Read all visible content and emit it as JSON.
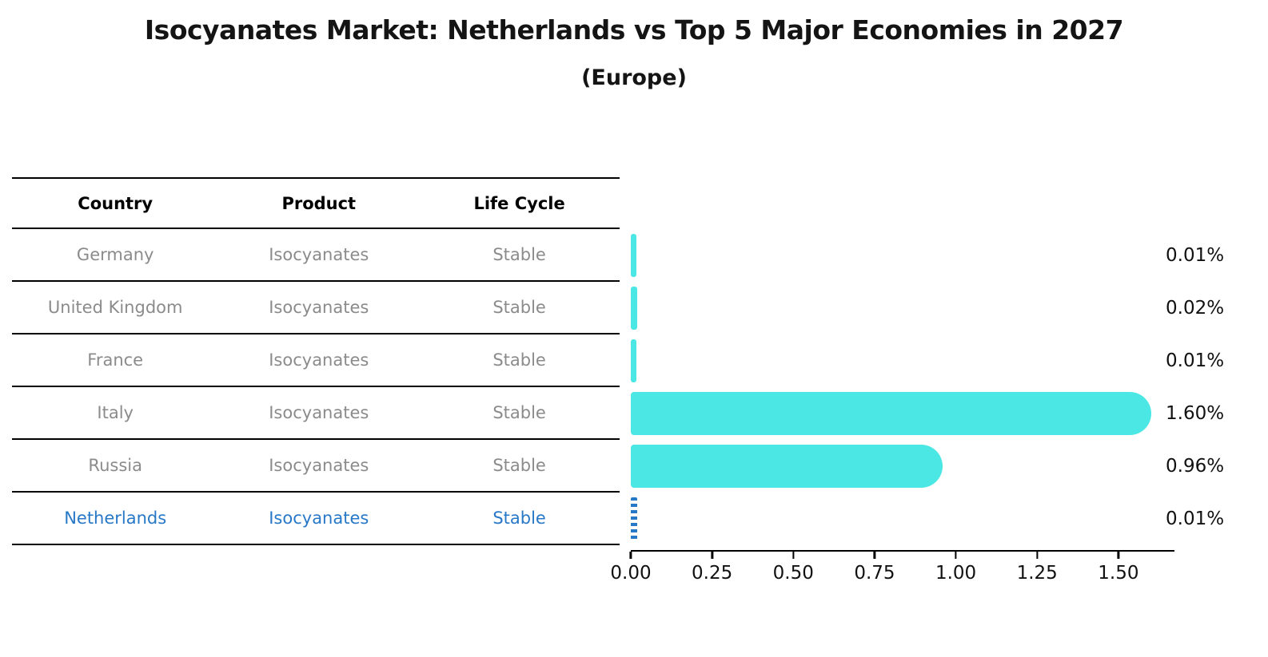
{
  "title": "Isocyanates Market: Netherlands vs Top 5 Major Economies in 2027",
  "subtitle": "(Europe)",
  "table": {
    "headers": [
      "Country",
      "Product",
      "Life Cycle"
    ],
    "rows": [
      {
        "country": "Germany",
        "product": "Isocyanates",
        "life_cycle": "Stable",
        "highlight": false
      },
      {
        "country": "United Kingdom",
        "product": "Isocyanates",
        "life_cycle": "Stable",
        "highlight": false
      },
      {
        "country": "France",
        "product": "Isocyanates",
        "life_cycle": "Stable",
        "highlight": false
      },
      {
        "country": "Italy",
        "product": "Isocyanates",
        "life_cycle": "Stable",
        "highlight": false
      },
      {
        "country": "Russia",
        "product": "Isocyanates",
        "life_cycle": "Stable",
        "highlight": false
      },
      {
        "country": "Netherlands",
        "product": "Isocyanates",
        "life_cycle": "Stable",
        "highlight": true
      }
    ]
  },
  "chart_data": {
    "type": "bar",
    "orientation": "horizontal",
    "title": "Isocyanates Market: Netherlands vs Top 5 Major Economies in 2027 (Europe)",
    "categories": [
      "Germany",
      "United Kingdom",
      "France",
      "Italy",
      "Russia",
      "Netherlands"
    ],
    "values": [
      0.01,
      0.02,
      0.01,
      1.6,
      0.96,
      0.01
    ],
    "value_labels": [
      "0.01%",
      "0.02%",
      "0.01%",
      "1.60%",
      "0.96%",
      "0.01%"
    ],
    "x_ticks": [
      "0.00",
      "0.25",
      "0.50",
      "0.75",
      "1.00",
      "1.25",
      "1.50"
    ],
    "xlim": [
      0,
      1.67
    ],
    "grid": false,
    "legend": "none",
    "bar_color": "#4BE7E4",
    "highlight_color": "#2878C8",
    "highlight_index": 5,
    "highlight_style": "dotted"
  }
}
